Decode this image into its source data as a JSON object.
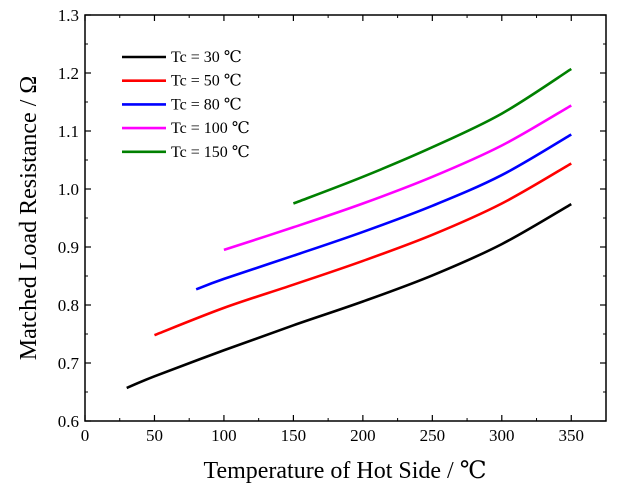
{
  "chart_data": {
    "type": "line",
    "title": "",
    "xlabel": "Temperature of Hot Side / ℃",
    "ylabel": "Matched Load Resistance / Ω",
    "xlim": [
      0,
      375
    ],
    "ylim": [
      0.6,
      1.3
    ],
    "xticks": [
      "0",
      "50",
      "100",
      "150",
      "200",
      "250",
      "300",
      "350"
    ],
    "yticks": [
      "0.6",
      "0.7",
      "0.8",
      "0.9",
      "1.0",
      "1.1",
      "1.2",
      "1.3"
    ],
    "legend_position": "top-left",
    "grid": false,
    "series": [
      {
        "name": "Tc = 30 ℃",
        "color": "#000000",
        "x": [
          30,
          50,
          100,
          150,
          200,
          250,
          300,
          350
        ],
        "y": [
          0.657,
          0.677,
          0.722,
          0.765,
          0.806,
          0.851,
          0.905,
          0.974
        ]
      },
      {
        "name": "Tc = 50 ℃",
        "color": "#ff0000",
        "x": [
          50,
          100,
          150,
          200,
          250,
          300,
          350
        ],
        "y": [
          0.748,
          0.795,
          0.835,
          0.876,
          0.921,
          0.975,
          1.044
        ]
      },
      {
        "name": "Tc = 80 ℃",
        "color": "#0000ff",
        "x": [
          80,
          100,
          150,
          200,
          250,
          300,
          350
        ],
        "y": [
          0.827,
          0.845,
          0.885,
          0.926,
          0.971,
          1.024,
          1.094
        ]
      },
      {
        "name": "Tc = 100 ℃",
        "color": "#ff00ff",
        "x": [
          100,
          150,
          200,
          250,
          300,
          350
        ],
        "y": [
          0.895,
          0.934,
          0.975,
          1.021,
          1.075,
          1.144
        ]
      },
      {
        "name": "Tc = 150 ℃",
        "color": "#008000",
        "x": [
          150,
          200,
          250,
          300,
          350
        ],
        "y": [
          0.975,
          1.021,
          1.072,
          1.13,
          1.207
        ]
      }
    ]
  }
}
